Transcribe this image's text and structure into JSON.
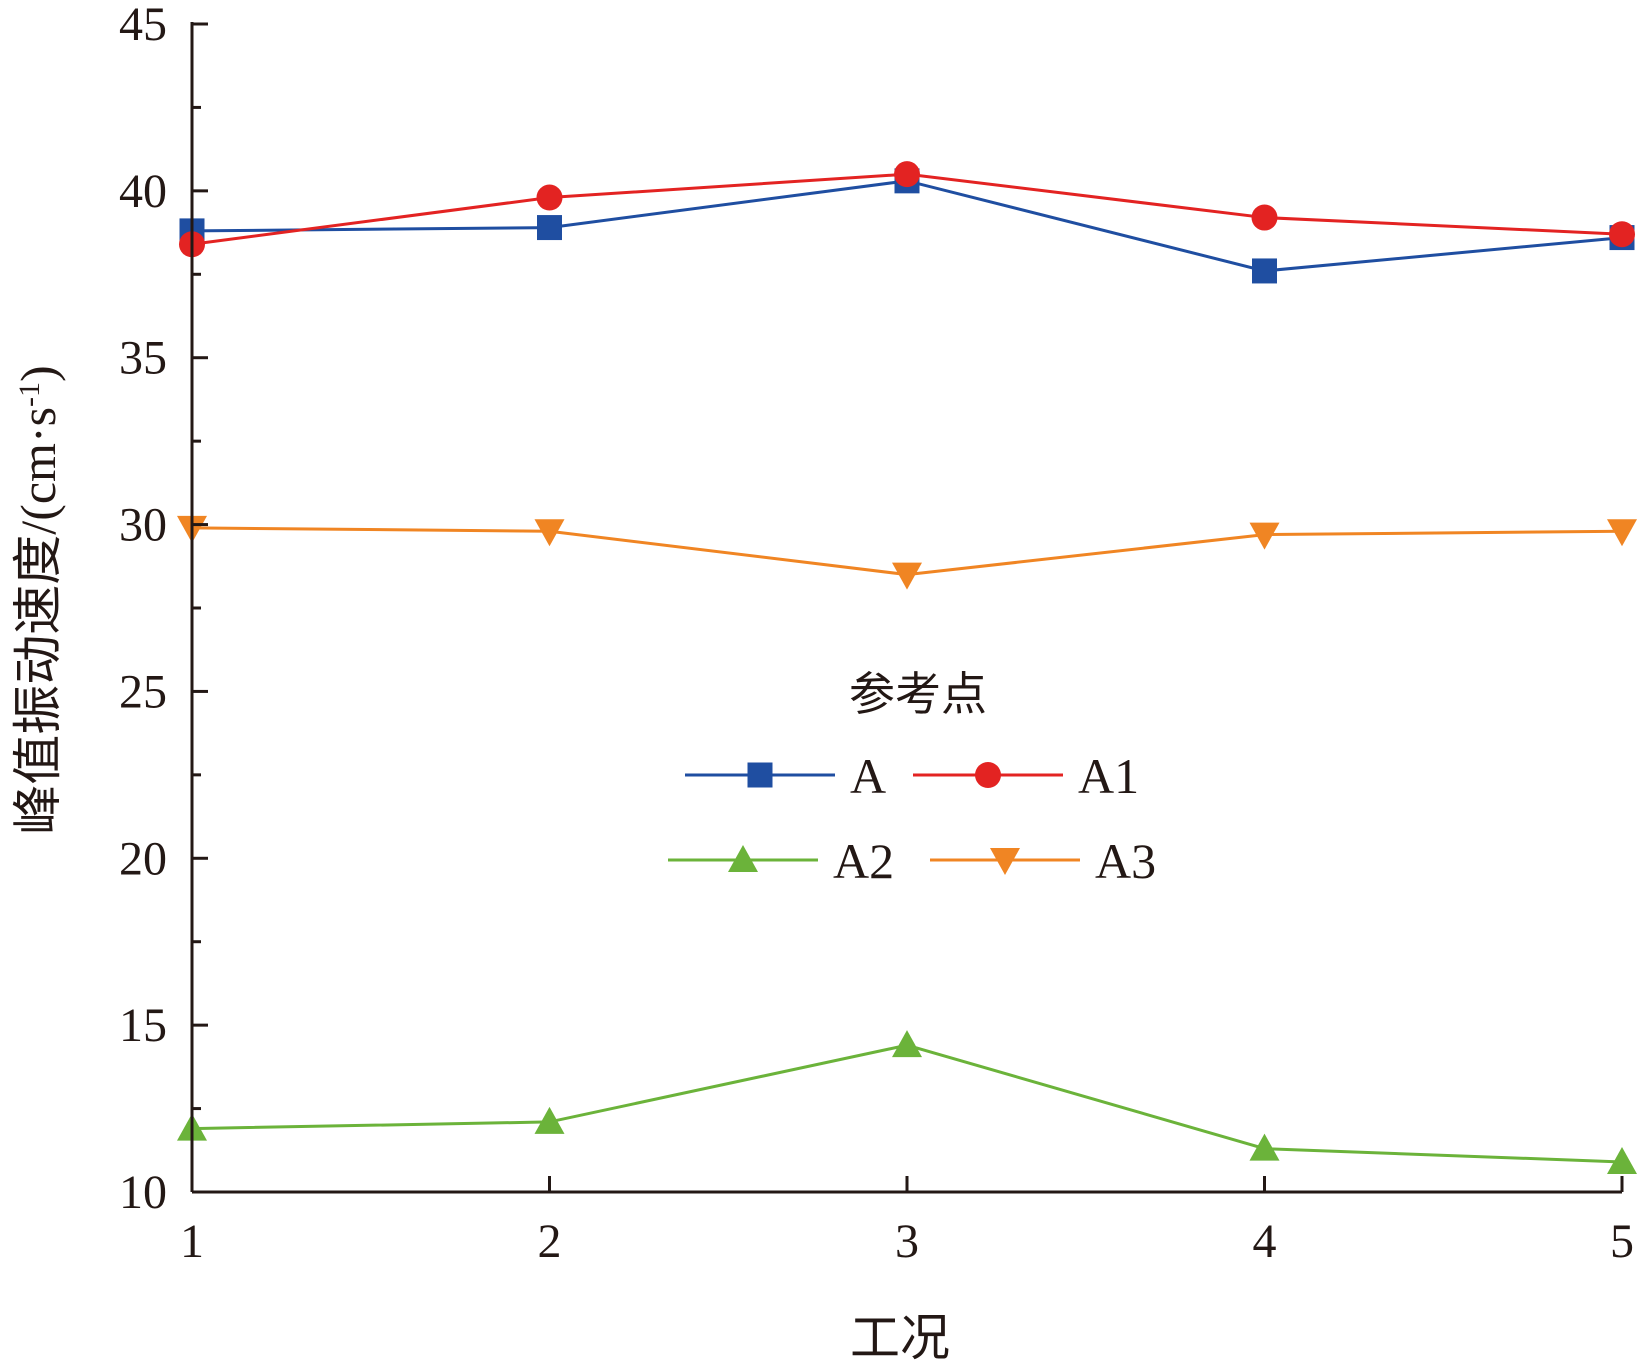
{
  "chart_data": {
    "type": "line",
    "xlabel": "工况",
    "ylabel": "峰值振动速度/(cm·s",
    "ylabel_sup": "-1",
    "ylabel_close": ")",
    "x": [
      1,
      2,
      3,
      4,
      5
    ],
    "x_tick_labels": [
      "1",
      "2",
      "3",
      "4",
      "5"
    ],
    "xlim": [
      1,
      5
    ],
    "ylim": [
      10,
      45
    ],
    "y_ticks": [
      10,
      15,
      20,
      25,
      30,
      35,
      40,
      45
    ],
    "y_tick_labels": [
      "10",
      "15",
      "20",
      "25",
      "30",
      "35",
      "40",
      "45"
    ],
    "grid": false,
    "legend": {
      "title": "参考点",
      "placement": "center",
      "columns": 2
    },
    "series": [
      {
        "name": "A",
        "color": "#1f4ea1",
        "marker": "square",
        "values": [
          38.8,
          38.9,
          40.3,
          37.6,
          38.6
        ]
      },
      {
        "name": "A1",
        "color": "#e32322",
        "marker": "circle",
        "values": [
          38.4,
          39.8,
          40.5,
          39.2,
          38.7
        ]
      },
      {
        "name": "A2",
        "color": "#6bb33a",
        "marker": "triangle-up",
        "values": [
          11.9,
          12.1,
          14.4,
          11.3,
          10.9
        ]
      },
      {
        "name": "A3",
        "color": "#f08523",
        "marker": "triangle-down",
        "values": [
          29.9,
          29.8,
          28.5,
          29.7,
          29.8
        ]
      }
    ]
  }
}
